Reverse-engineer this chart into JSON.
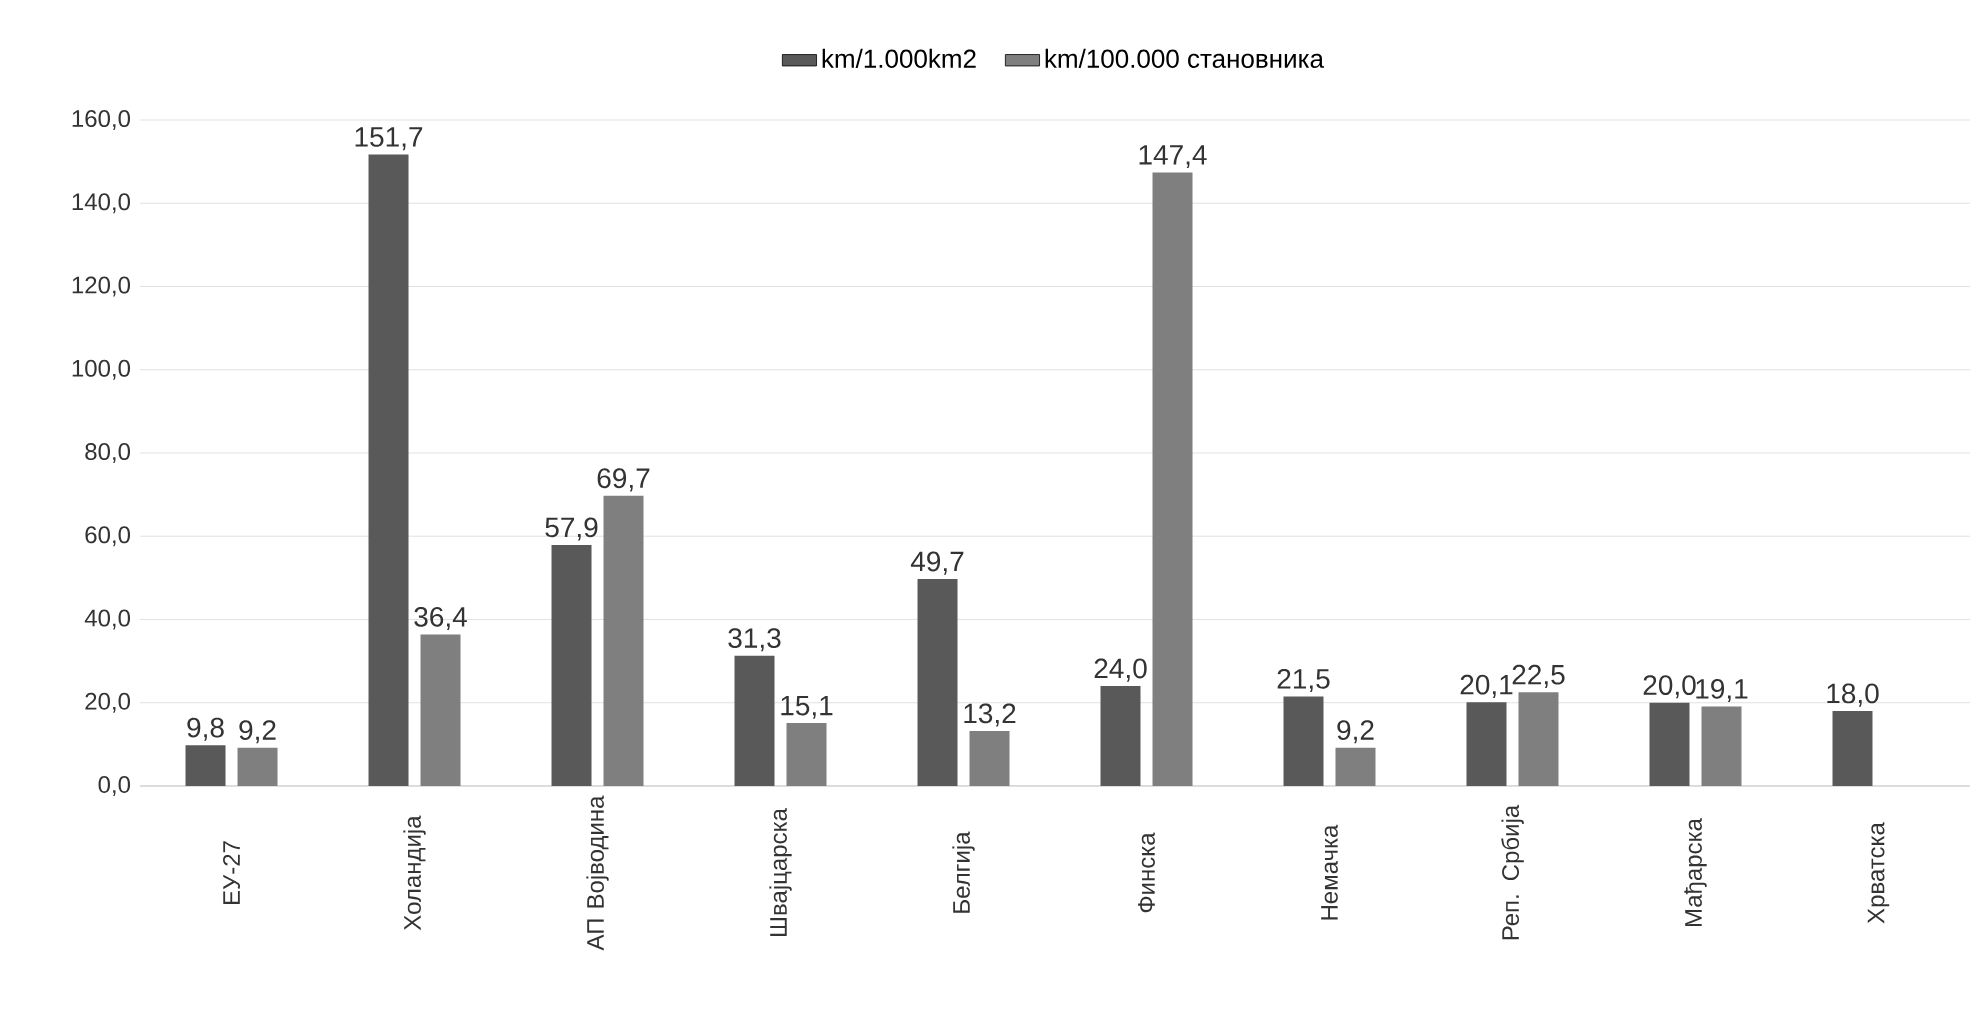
{
  "chart_data": {
    "type": "bar",
    "categories": [
      "ЕУ-27",
      "Холандија",
      "АП Војводина",
      "Швајцарска",
      "Белгија",
      "Финска",
      "Немачка",
      "Реп. Србија",
      "Мађарска",
      "Хрватска"
    ],
    "series": [
      {
        "name": "km/1.000km2",
        "color": "#595959",
        "values": [
          9.8,
          151.7,
          57.9,
          31.3,
          49.7,
          24.0,
          21.5,
          20.1,
          20.0,
          18.0
        ],
        "value_labels": [
          "9,8",
          "151,7",
          "57,9",
          "31,3",
          "49,7",
          "24,0",
          "21,5",
          "20,1",
          "20,0",
          "18,0"
        ]
      },
      {
        "name": "km/100.000 становника",
        "color": "#7f7f7f",
        "values": [
          9.2,
          36.4,
          69.7,
          15.1,
          13.2,
          147.4,
          9.2,
          22.5,
          19.1,
          null
        ],
        "value_labels": [
          "9,2",
          "36,4",
          "69,7",
          "15,1",
          "13,2",
          "147,4",
          "9,2",
          "22,5",
          "19,1",
          null
        ]
      }
    ],
    "ylim": [
      0,
      160
    ],
    "yticks": [
      {
        "value": 0,
        "label": "0,0"
      },
      {
        "value": 20,
        "label": "20,0"
      },
      {
        "value": 40,
        "label": "40,0"
      },
      {
        "value": 60,
        "label": "60,0"
      },
      {
        "value": 80,
        "label": "80,0"
      },
      {
        "value": 100,
        "label": "100,0"
      },
      {
        "value": 120,
        "label": "120,0"
      },
      {
        "value": 140,
        "label": "140,0"
      },
      {
        "value": 160,
        "label": "160,0"
      }
    ],
    "grid": "y",
    "legend": "top"
  }
}
